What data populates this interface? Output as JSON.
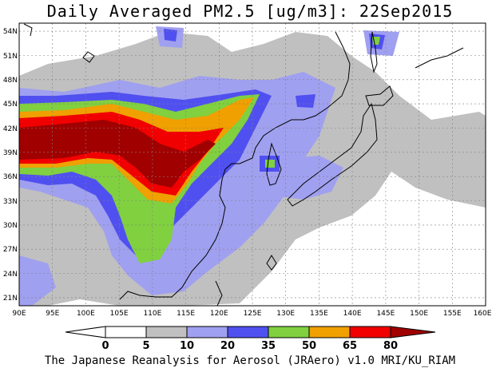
{
  "title": "Daily Averaged PM2.5 [ug/m3]: 22Sep2015",
  "footer": "The Japanese Reanalysis for Aerosol (JRAero) v1.0 MRI/KU_RIAM",
  "map": {
    "lon_range": [
      90,
      160
    ],
    "lat_range": [
      20,
      55
    ],
    "lon_ticks": [
      "90E",
      "95E",
      "100E",
      "105E",
      "110E",
      "115E",
      "120E",
      "125E",
      "130E",
      "135E",
      "140E",
      "145E",
      "150E",
      "155E",
      "160E"
    ],
    "lat_ticks": [
      "21N",
      "24N",
      "27N",
      "30N",
      "33N",
      "36N",
      "39N",
      "42N",
      "45N",
      "48N",
      "51N",
      "54N"
    ],
    "grid": true
  },
  "colorbar": {
    "levels": [
      "0",
      "5",
      "10",
      "20",
      "35",
      "50",
      "65",
      "80"
    ],
    "colors": [
      "#ffffff",
      "#c0c0c0",
      "#a0a0f0",
      "#5050f0",
      "#80d040",
      "#f0a000",
      "#f00000",
      "#a00000"
    ]
  }
}
